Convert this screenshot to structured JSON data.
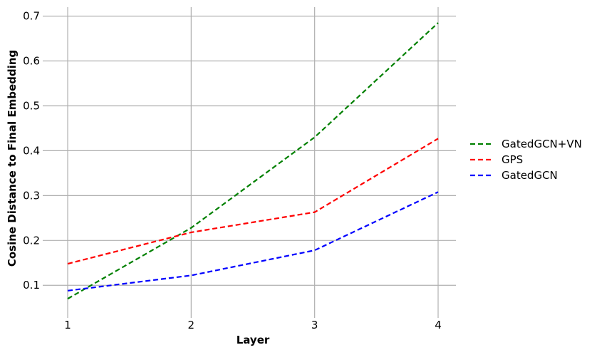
{
  "chart_data": {
    "type": "line",
    "title": "",
    "xlabel": "Layer",
    "ylabel": "Cosine Distance to Final Embedding",
    "x": [
      1,
      2,
      3,
      4
    ],
    "x_tick_labels": [
      "1",
      "2",
      "3",
      "4"
    ],
    "xlim": [
      1,
      4
    ],
    "ylim": [
      0.04,
      0.72
    ],
    "y_ticks": [
      0.1,
      0.2,
      0.3,
      0.4,
      0.5,
      0.6,
      0.7
    ],
    "y_tick_labels": [
      "0.1",
      "0.2",
      "0.3",
      "0.4",
      "0.5",
      "0.6",
      "0.7"
    ],
    "grid": true,
    "legend_position": "right",
    "line_style": "dashed",
    "series": [
      {
        "name": "GatedGCN+VN",
        "color": "#008000",
        "values": [
          0.07,
          0.228,
          0.43,
          0.685
        ]
      },
      {
        "name": "GPS",
        "color": "#ff0000",
        "values": [
          0.148,
          0.218,
          0.263,
          0.427
        ]
      },
      {
        "name": "GatedGCN",
        "color": "#0000ff",
        "values": [
          0.088,
          0.122,
          0.178,
          0.308
        ]
      }
    ]
  }
}
